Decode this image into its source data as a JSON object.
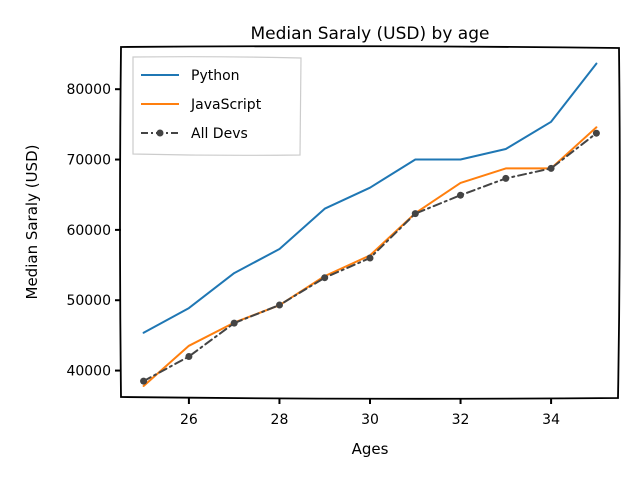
{
  "chart_data": {
    "type": "line",
    "title": "Median Saraly (USD) by age",
    "xlabel": "Ages",
    "ylabel": "Median Saraly (USD)",
    "x": [
      25,
      26,
      27,
      28,
      29,
      30,
      31,
      32,
      33,
      34,
      35
    ],
    "xlim": [
      24.5,
      35.5
    ],
    "ylim": [
      36100,
      86000
    ],
    "xticks": [
      26,
      28,
      30,
      32,
      34
    ],
    "yticks": [
      40000,
      50000,
      60000,
      70000,
      80000
    ],
    "xtick_labels": [
      "26",
      "28",
      "30",
      "32",
      "34"
    ],
    "ytick_labels": [
      "40000",
      "50000",
      "60000",
      "70000",
      "80000"
    ],
    "grid": false,
    "legend_position": "top-left",
    "series": [
      {
        "name": "Python",
        "color": "#1f77b4",
        "style": "solid",
        "marker": "none",
        "values": [
          45372,
          48876,
          53850,
          57287,
          63016,
          65998,
          70003,
          70000,
          71496,
          75370,
          83640
        ]
      },
      {
        "name": "JavaScript",
        "color": "#ff7f0e",
        "style": "solid",
        "marker": "none",
        "values": [
          37810,
          43515,
          46823,
          49293,
          53437,
          56373,
          62375,
          66674,
          68745,
          68746,
          74583
        ]
      },
      {
        "name": "All Devs",
        "color": "#444444",
        "style": "dashdot",
        "marker": "dot",
        "values": [
          38496,
          42000,
          46752,
          49320,
          53200,
          56000,
          62316,
          64928,
          67317,
          68748,
          73752
        ]
      }
    ]
  }
}
